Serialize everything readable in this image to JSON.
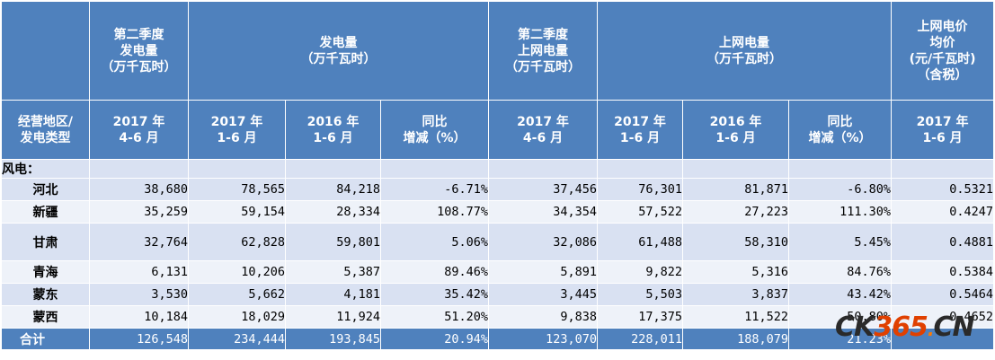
{
  "header_top": {
    "col1": [
      "第二季度",
      "发电量",
      "（万千瓦时）"
    ],
    "group_gen": [
      "发电量",
      "（万千瓦时）"
    ],
    "col5": [
      "第二季度",
      "上网电量",
      "（万千瓦时）"
    ],
    "group_grid": [
      "上网电量",
      "（万千瓦时）"
    ],
    "col9": [
      "上网电价",
      "均价",
      "(元/千瓦时)",
      "（含税）"
    ]
  },
  "header_sub": {
    "col0": [
      "经营地区/",
      "发电类型"
    ],
    "col1": [
      "2017 年",
      "4-6 月"
    ],
    "col2": [
      "2017 年",
      "1-6 月"
    ],
    "col3": [
      "2016 年",
      "1-6 月"
    ],
    "col4": [
      "同比",
      "增减（%）"
    ],
    "col5": [
      "2017 年",
      "4-6 月"
    ],
    "col6": [
      "2017 年",
      "1-6 月"
    ],
    "col7": [
      "2016 年",
      "1-6 月"
    ],
    "col8": [
      "同比",
      "增减（%）"
    ],
    "col9": [
      "2017 年",
      "1-6 月"
    ]
  },
  "section_label": "风电：",
  "rows": [
    {
      "region": "河北",
      "values": [
        "38,680",
        "78,565",
        "84,218",
        "-6.71%",
        "37,456",
        "76,301",
        "81,871",
        "-6.80%",
        "0.5321"
      ]
    },
    {
      "region": "新疆",
      "values": [
        "35,259",
        "59,154",
        "28,334",
        "108.77%",
        "34,354",
        "57,522",
        "27,223",
        "111.30%",
        "0.4247"
      ]
    },
    {
      "region": "甘肃",
      "values": [
        "32,764",
        "62,828",
        "59,801",
        "5.06%",
        "32,086",
        "61,488",
        "58,310",
        "5.45%",
        "0.4881"
      ]
    },
    {
      "region": "青海",
      "values": [
        "6,131",
        "10,206",
        "5,387",
        "89.46%",
        "5,891",
        "9,822",
        "5,316",
        "84.76%",
        "0.5384"
      ]
    },
    {
      "region": "蒙东",
      "values": [
        "3,530",
        "5,662",
        "4,181",
        "35.42%",
        "3,445",
        "5,503",
        "3,837",
        "43.42%",
        "0.5464"
      ]
    },
    {
      "region": "蒙西",
      "values": [
        "10,184",
        "18,029",
        "11,924",
        "51.20%",
        "9,838",
        "17,375",
        "11,522",
        "50.80%",
        "0.4652"
      ]
    }
  ],
  "total": {
    "label": "合计",
    "values": [
      "126,548",
      "234,444",
      "193,845",
      "20.94%",
      "123,070",
      "228,011",
      "188,079",
      "21.23%",
      ""
    ]
  },
  "watermark": {
    "p1": "CK",
    "p2": "365",
    "p3": ".",
    "p4": "CN"
  }
}
